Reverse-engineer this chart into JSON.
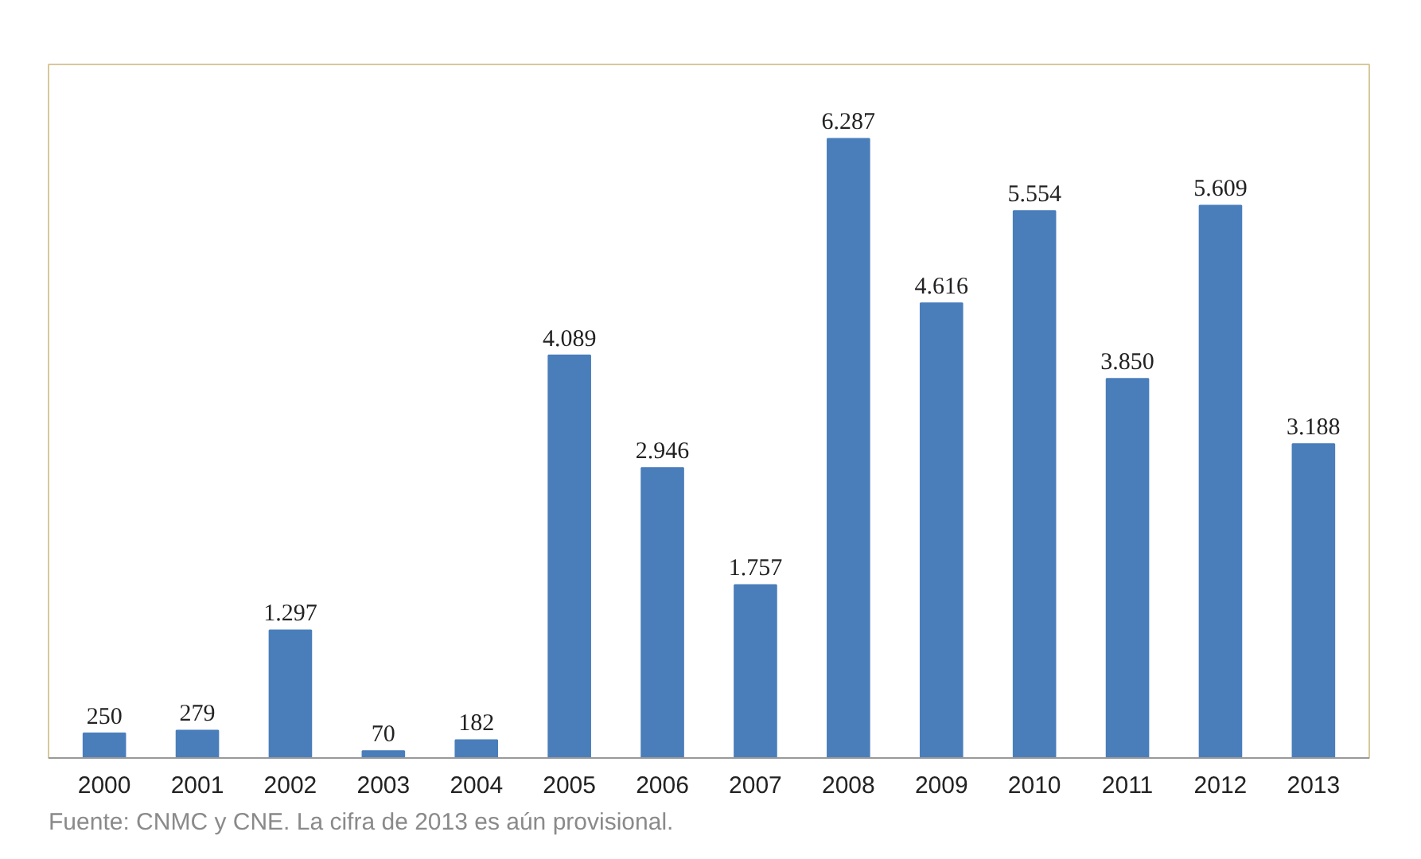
{
  "chart_data": {
    "type": "bar",
    "categories": [
      "2000",
      "2001",
      "2002",
      "2003",
      "2004",
      "2005",
      "2006",
      "2007",
      "2008",
      "2009",
      "2010",
      "2011",
      "2012",
      "2013"
    ],
    "values": [
      250,
      279,
      1297,
      70,
      182,
      4089,
      2946,
      1757,
      6287,
      4616,
      5554,
      3850,
      5609,
      3188
    ],
    "value_labels": [
      "250",
      "279",
      "1.297",
      "70",
      "182",
      "4.089",
      "2.946",
      "1.757",
      "6.287",
      "4.616",
      "5.554",
      "3.850",
      "5.609",
      "3.188"
    ],
    "color": "#4a7ebb",
    "tick_labels": "x",
    "grid": false,
    "annotations": [
      "Fuente: CNMC y CNE. La cifra de 2013 es aún provisional."
    ]
  }
}
